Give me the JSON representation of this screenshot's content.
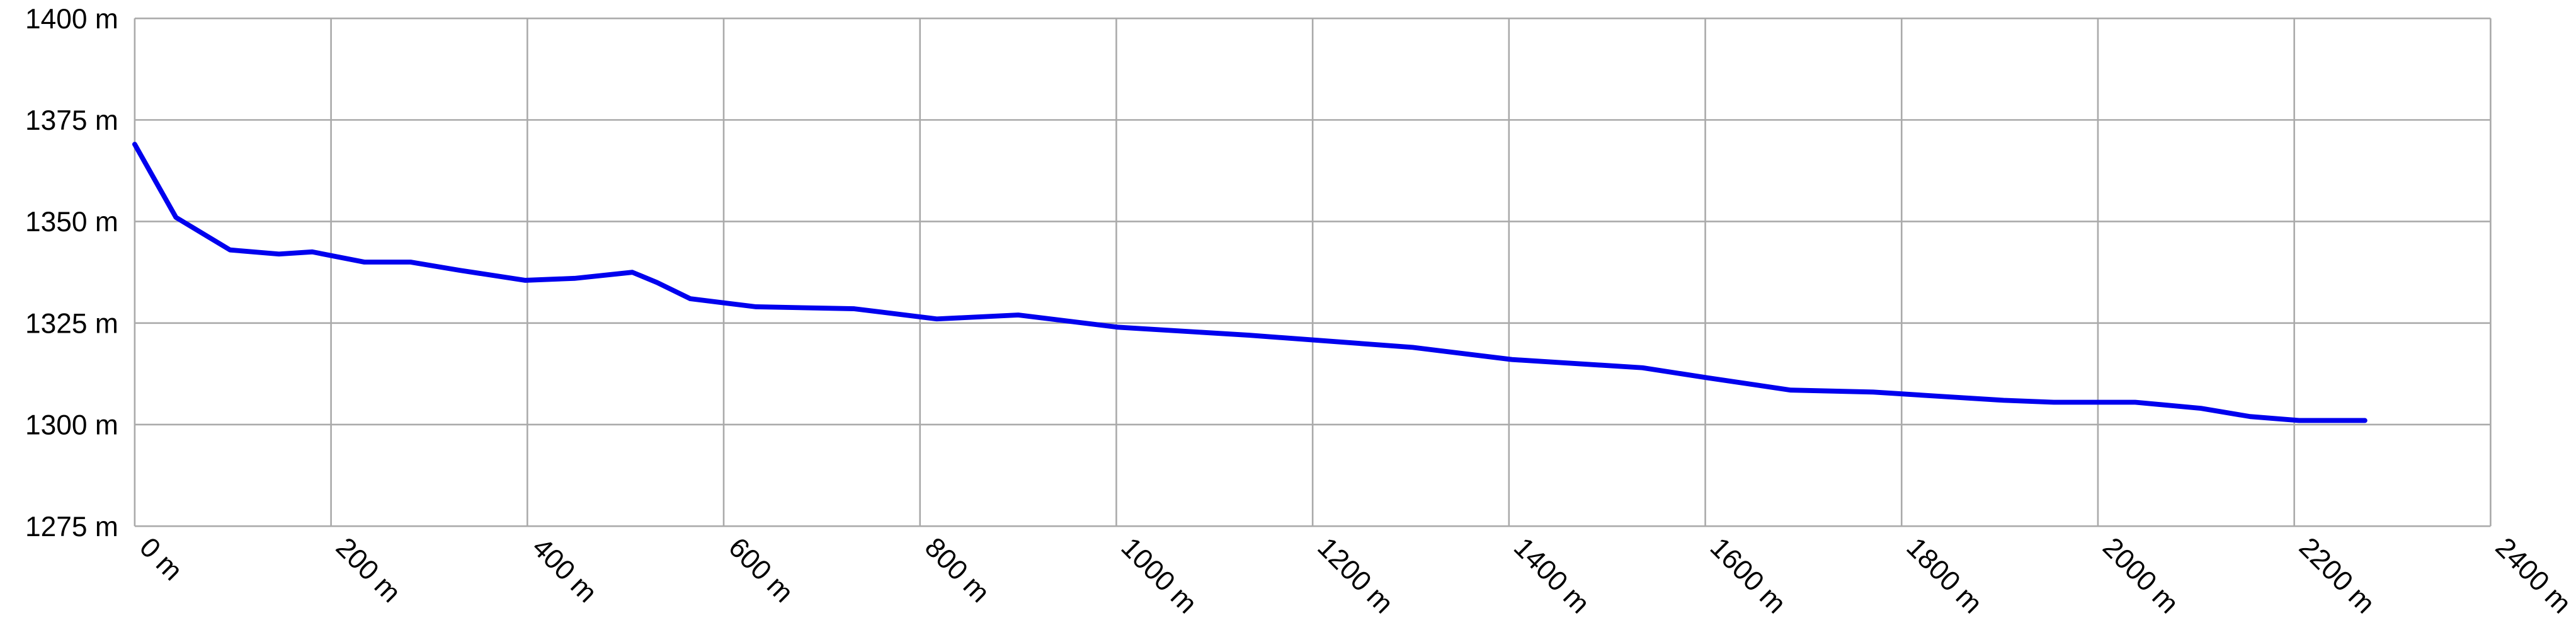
{
  "chart_data": {
    "type": "line",
    "x": [
      0,
      42,
      97,
      147,
      181,
      234,
      281,
      331,
      398,
      448,
      507,
      532,
      566,
      633,
      733,
      817,
      900,
      1001,
      1135,
      1302,
      1403,
      1536,
      1603,
      1687,
      1771,
      1837,
      1904,
      1955,
      2038,
      2105,
      2155,
      2205,
      2272
    ],
    "series": [
      {
        "name": "Elevation",
        "color": "#0000ee",
        "values": [
          1369,
          1351,
          1343,
          1342,
          1342.5,
          1340,
          1340,
          1338,
          1335.5,
          1336,
          1337.5,
          1335,
          1331,
          1329,
          1328.5,
          1326,
          1327,
          1324,
          1322,
          1319,
          1316,
          1314,
          1311.5,
          1308.5,
          1308,
          1307,
          1306,
          1305.5,
          1305.5,
          1304,
          1302,
          1301,
          1301
        ]
      }
    ],
    "xlim": [
      0,
      2400
    ],
    "xticks": [
      {
        "value": 0,
        "label": "0 m"
      },
      {
        "value": 200,
        "label": "200 m"
      },
      {
        "value": 400,
        "label": "400 m"
      },
      {
        "value": 600,
        "label": "600 m"
      },
      {
        "value": 800,
        "label": "800 m"
      },
      {
        "value": 1000,
        "label": "1000 m"
      },
      {
        "value": 1200,
        "label": "1200 m"
      },
      {
        "value": 1400,
        "label": "1400 m"
      },
      {
        "value": 1600,
        "label": "1600 m"
      },
      {
        "value": 1800,
        "label": "1800 m"
      },
      {
        "value": 2000,
        "label": "2000 m"
      },
      {
        "value": 2200,
        "label": "2200 m"
      },
      {
        "value": 2400,
        "label": "2400 m"
      }
    ],
    "ylim": [
      1275,
      1400
    ],
    "yticks": [
      {
        "value": 1275,
        "label": "1275 m"
      },
      {
        "value": 1300,
        "label": "1300 m"
      },
      {
        "value": 1325,
        "label": "1325 m"
      },
      {
        "value": 1350,
        "label": "1350 m"
      },
      {
        "value": 1375,
        "label": "1375 m"
      },
      {
        "value": 1400,
        "label": "1400 m"
      }
    ],
    "grid": true
  }
}
